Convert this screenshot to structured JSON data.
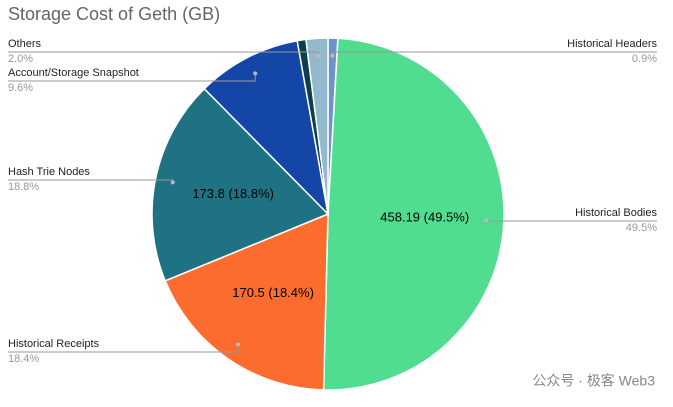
{
  "chart_data": {
    "type": "pie",
    "title": "Storage Cost of Geth (GB)",
    "categories": [
      "Historical Headers",
      "Historical Bodies",
      "Historical Receipts",
      "Hash Trie Nodes",
      "Account/Storage Snapshot",
      null,
      "Others"
    ],
    "values": [
      0.9,
      49.5,
      18.4,
      18.8,
      9.6,
      0.8,
      2.0
    ],
    "percent_labels": [
      "0.9%",
      "49.5%",
      "18.4%",
      "18.8%",
      "9.6%",
      null,
      "2.0%"
    ],
    "value_labels": [
      null,
      "458.19 (49.5%)",
      "170.5 (18.4%)",
      "173.8 (18.8%)",
      null,
      null,
      null
    ],
    "colors": [
      "#6e93c9",
      "#50dd8f",
      "#fc6c2f",
      "#1f7284",
      "#1446a8",
      "#0b3f4d",
      "#93b9cc"
    ],
    "watermark": "公众号 · 极客 Web3"
  }
}
